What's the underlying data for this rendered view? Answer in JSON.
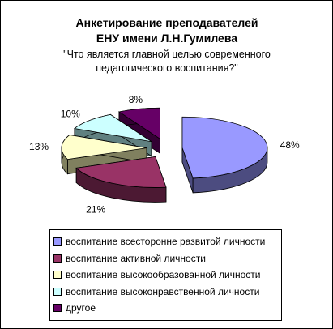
{
  "chart_data": {
    "type": "pie",
    "style": "3d-exploded",
    "title": "Анкетирование преподавателей ЕНУ имени Л.Н.Гумилева",
    "title_lines": [
      "Анкетирование преподавателей",
      "ЕНУ имени Л.Н.Гумилева"
    ],
    "subtitle": "\"Что является главной целью современного педагогического воспитания?\"",
    "subtitle_lines": [
      "\"Что является главной целью современного",
      "педагогического воспитания?\""
    ],
    "legend_position": "bottom",
    "categories": [
      "воспитание всесторонне развитой личности",
      "воспитание активной личности",
      "воспитание высокообразованной личности",
      "воспитание высоконравственной личности",
      "другое"
    ],
    "values": [
      48,
      21,
      13,
      10,
      8
    ],
    "value_labels": [
      "48%",
      "21%",
      "13%",
      "10%",
      "8%"
    ],
    "colors": [
      "#9999FF",
      "#993366",
      "#FFFFCC",
      "#CCFFFF",
      "#660066"
    ],
    "side_colors": [
      "#4C4C80",
      "#4C1933",
      "#80805F",
      "#608080",
      "#330033"
    ]
  }
}
